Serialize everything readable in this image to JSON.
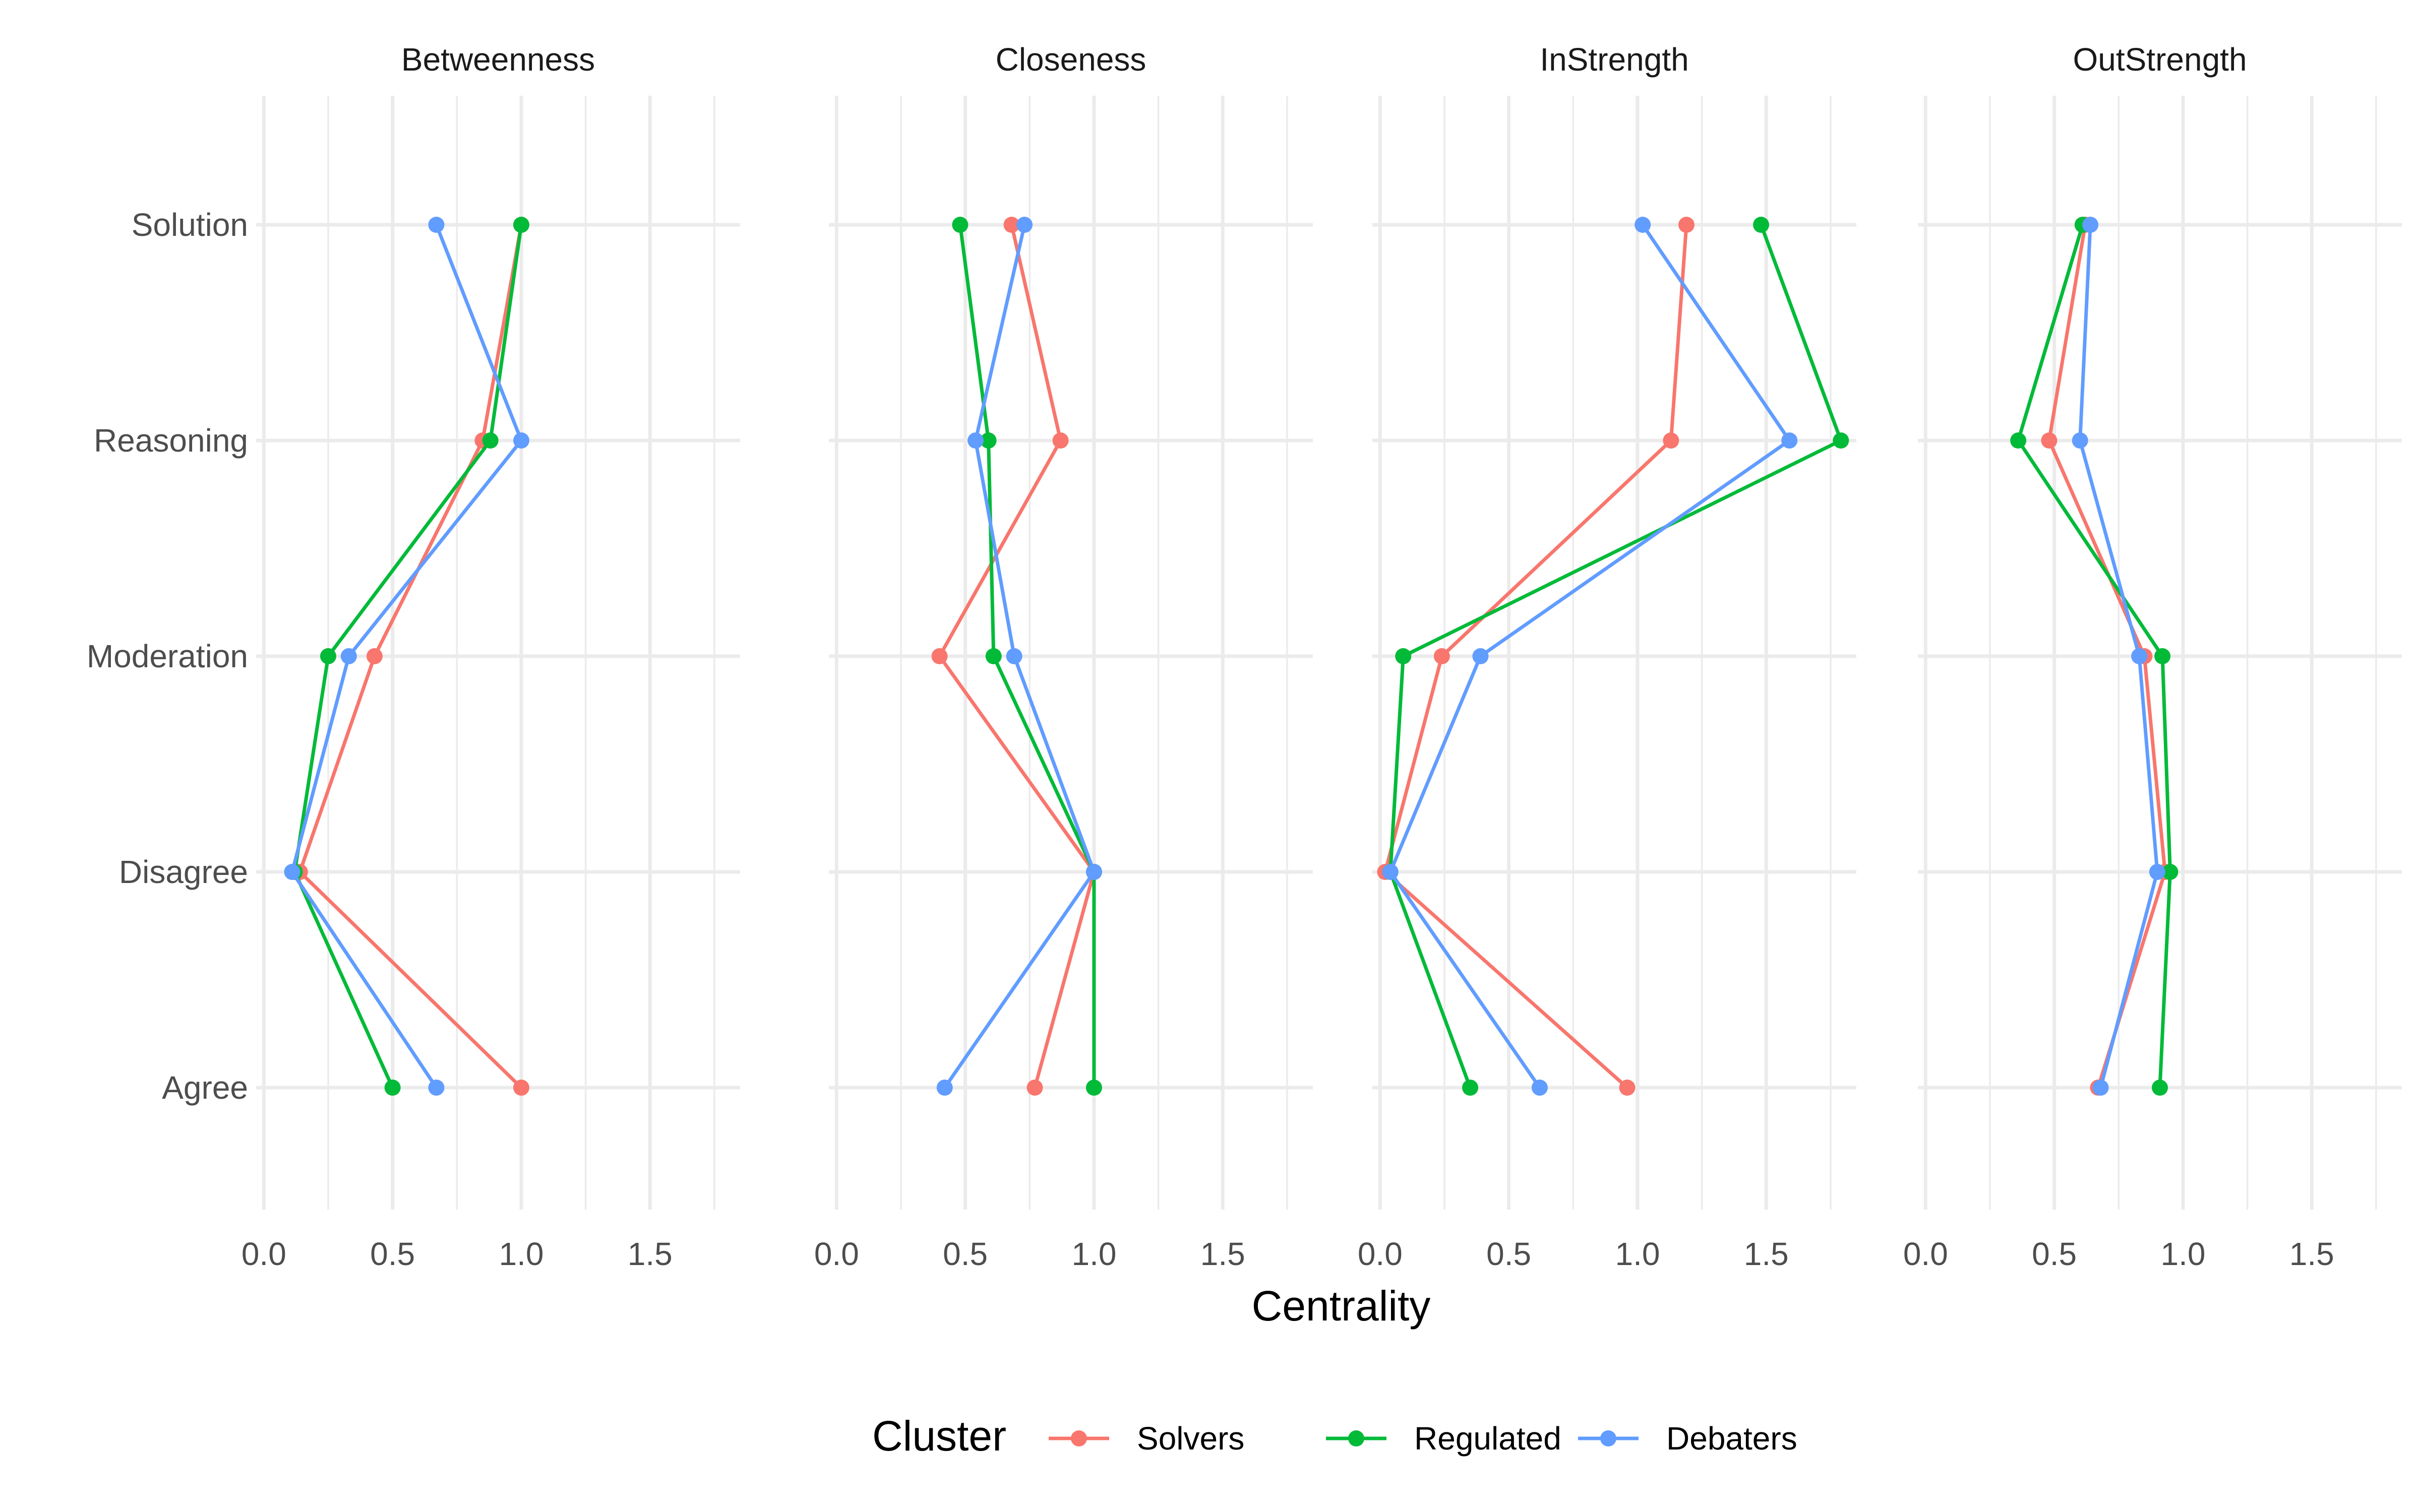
{
  "chart_data": {
    "type": "line",
    "orientation": "horizontal-values",
    "x_label": "Centrality",
    "xlim": [
      -0.03,
      1.85
    ],
    "x_ticks": [
      "0.0",
      "0.5",
      "1.0",
      "1.5"
    ],
    "x_tick_values": [
      0,
      0.5,
      1.0,
      1.5
    ],
    "categories": [
      "Solution",
      "Reasoning",
      "Moderation",
      "Disagree",
      "Agree"
    ],
    "legend": {
      "title": "Cluster",
      "position": "bottom"
    },
    "grid": true,
    "panels": [
      {
        "title": "Betweenness",
        "series": [
          {
            "name": "Solvers",
            "color": "#F8766D",
            "values": [
              1.0,
              0.85,
              0.43,
              0.14,
              1.0
            ]
          },
          {
            "name": "Regulated",
            "color": "#00BA38",
            "values": [
              1.0,
              0.88,
              0.25,
              0.12,
              0.5
            ]
          },
          {
            "name": "Debaters",
            "color": "#619CFF",
            "values": [
              0.67,
              1.0,
              0.33,
              0.11,
              0.67
            ]
          }
        ]
      },
      {
        "title": "Closeness",
        "series": [
          {
            "name": "Solvers",
            "color": "#F8766D",
            "values": [
              0.68,
              0.87,
              0.4,
              1.0,
              0.77
            ]
          },
          {
            "name": "Regulated",
            "color": "#00BA38",
            "values": [
              0.48,
              0.59,
              0.61,
              1.0,
              1.0
            ]
          },
          {
            "name": "Debaters",
            "color": "#619CFF",
            "values": [
              0.73,
              0.54,
              0.69,
              1.0,
              0.42
            ]
          }
        ]
      },
      {
        "title": "InStrength",
        "series": [
          {
            "name": "Solvers",
            "color": "#F8766D",
            "values": [
              1.19,
              1.13,
              0.24,
              0.02,
              0.96
            ]
          },
          {
            "name": "Regulated",
            "color": "#00BA38",
            "values": [
              1.48,
              1.79,
              0.09,
              0.04,
              0.35
            ]
          },
          {
            "name": "Debaters",
            "color": "#619CFF",
            "values": [
              1.02,
              1.59,
              0.39,
              0.04,
              0.62
            ]
          }
        ]
      },
      {
        "title": "OutStrength",
        "series": [
          {
            "name": "Solvers",
            "color": "#F8766D",
            "values": [
              0.62,
              0.48,
              0.85,
              0.93,
              0.67
            ]
          },
          {
            "name": "Regulated",
            "color": "#00BA38",
            "values": [
              0.61,
              0.36,
              0.92,
              0.95,
              0.91
            ]
          },
          {
            "name": "Debaters",
            "color": "#619CFF",
            "values": [
              0.64,
              0.6,
              0.83,
              0.9,
              0.68
            ]
          }
        ]
      }
    ]
  }
}
